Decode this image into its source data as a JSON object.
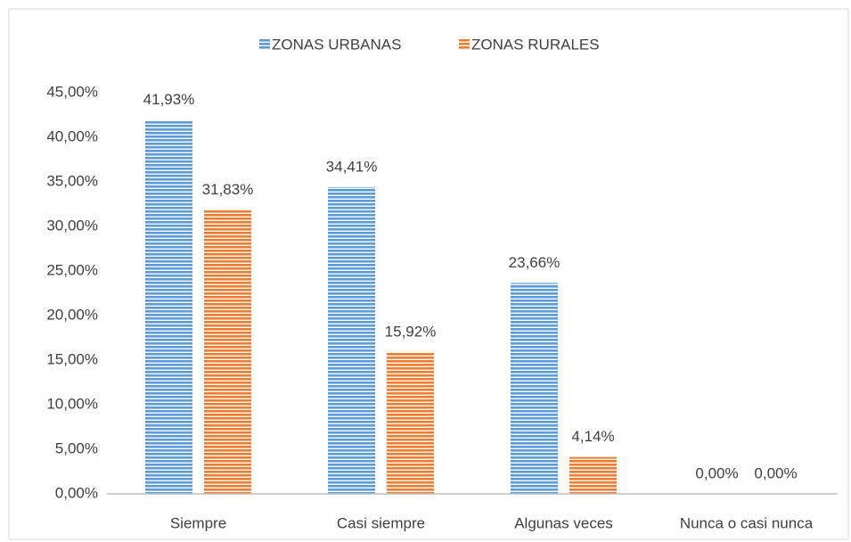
{
  "chart_data": {
    "type": "bar",
    "categories": [
      "Siempre",
      "Casi siempre",
      "Algunas veces",
      "Nunca o casi nunca"
    ],
    "series": [
      {
        "name": "ZONAS URBANAS",
        "color": "#5b9bd5",
        "values": [
          41.93,
          34.41,
          23.66,
          0
        ],
        "value_labels": [
          "41,93%",
          "34,41%",
          "23,66%",
          "0,00%"
        ]
      },
      {
        "name": "ZONAS RURALES",
        "color": "#ed7d31",
        "values": [
          31.83,
          15.92,
          4.14,
          0
        ],
        "value_labels": [
          "31,83%",
          "15,92%",
          "4,14%",
          "0,00%"
        ]
      }
    ],
    "ylim": [
      0,
      45
    ],
    "yticks": [
      {
        "value": 0,
        "label": "0,00%"
      },
      {
        "value": 5,
        "label": "5,00%"
      },
      {
        "value": 10,
        "label": "10,00%"
      },
      {
        "value": 15,
        "label": "15,00%"
      },
      {
        "value": 20,
        "label": "20,00%"
      },
      {
        "value": 25,
        "label": "25,00%"
      },
      {
        "value": 30,
        "label": "30,00%"
      },
      {
        "value": 35,
        "label": "35,00%"
      },
      {
        "value": 40,
        "label": "40,00%"
      },
      {
        "value": 45,
        "label": "45,00%"
      }
    ],
    "grid": false,
    "legend": "top"
  }
}
